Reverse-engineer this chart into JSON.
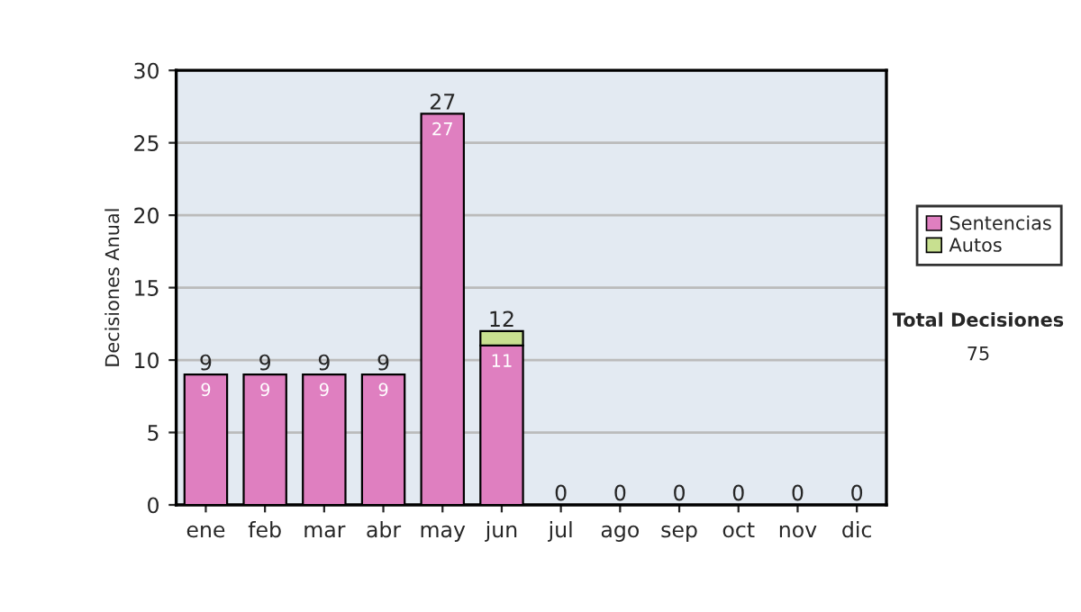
{
  "chart_data": {
    "type": "bar",
    "stacked": true,
    "ylabel": "Decisiones Anual",
    "categories": [
      "ene",
      "feb",
      "mar",
      "abr",
      "may",
      "jun",
      "jul",
      "ago",
      "sep",
      "oct",
      "nov",
      "dic"
    ],
    "series": [
      {
        "name": "Sentencias",
        "color": "#df7fc0",
        "values": [
          9,
          9,
          9,
          9,
          27,
          11,
          0,
          0,
          0,
          0,
          0,
          0
        ],
        "value_labels": [
          "9",
          "9",
          "9",
          "9",
          "27",
          "11",
          null,
          null,
          null,
          null,
          null,
          null
        ]
      },
      {
        "name": "Autos",
        "color": "#c8e090",
        "values": [
          0,
          0,
          0,
          0,
          0,
          1,
          0,
          0,
          0,
          0,
          0,
          0
        ]
      }
    ],
    "totals": [
      "9",
      "9",
      "9",
      "9",
      "27",
      "12",
      "0",
      "0",
      "0",
      "0",
      "0",
      "0"
    ],
    "ylim": [
      0,
      30
    ],
    "yticks": [
      0,
      5,
      10,
      15,
      20,
      25,
      30
    ],
    "grid": "y",
    "legend": "right",
    "annotations": [
      "Total Decisiones",
      "75"
    ]
  }
}
